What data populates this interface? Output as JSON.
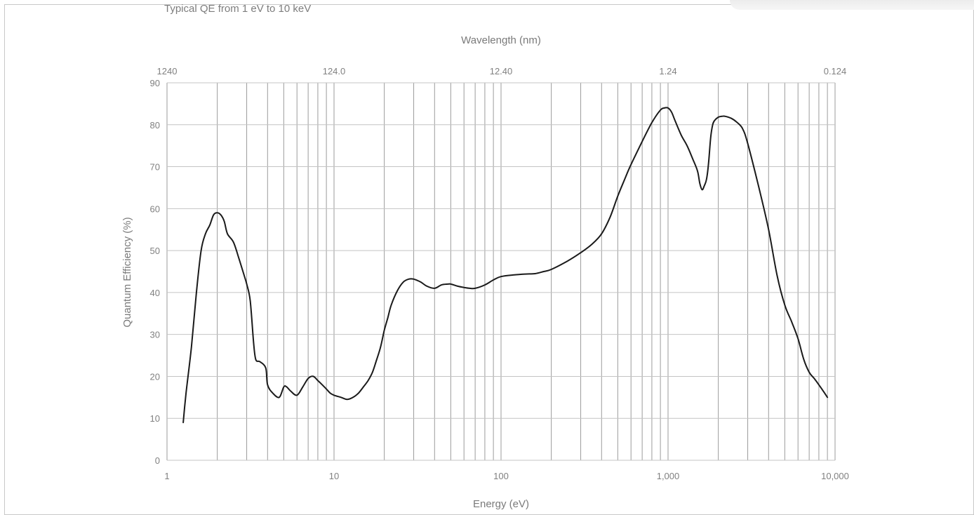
{
  "chart_data": {
    "type": "line",
    "title": "Typical QE from 1 eV to 10 keV",
    "xlabel": "Energy (eV)",
    "ylabel": "Quantum Efficiency (%)",
    "x2label": "Wavelength (nm)",
    "xscale": "log",
    "xlim": [
      1,
      10000
    ],
    "ylim": [
      0,
      90
    ],
    "grid": true,
    "x_ticks": [
      {
        "value": 1,
        "label": "1"
      },
      {
        "value": 10,
        "label": "10"
      },
      {
        "value": 100,
        "label": "100"
      },
      {
        "value": 1000,
        "label": "1,000"
      },
      {
        "value": 10000,
        "label": "10,000"
      }
    ],
    "x2_ticks": [
      {
        "value": 1,
        "label": "1240"
      },
      {
        "value": 10,
        "label": "124.0"
      },
      {
        "value": 100,
        "label": "12.40"
      },
      {
        "value": 1000,
        "label": "1.24"
      },
      {
        "value": 10000,
        "label": "0.124"
      }
    ],
    "y_ticks": [
      0,
      10,
      20,
      30,
      40,
      50,
      60,
      70,
      80,
      90
    ],
    "series": [
      {
        "color": "#1a1a1a",
        "x": [
          1.25,
          1.3,
          1.4,
          1.5,
          1.6,
          1.7,
          1.8,
          1.9,
          2.0,
          2.1,
          2.2,
          2.3,
          2.5,
          2.7,
          2.9,
          3.0,
          3.15,
          3.3,
          3.4,
          3.6,
          3.9,
          4.0,
          4.3,
          4.7,
          5.0,
          5.2,
          5.5,
          6.0,
          6.5,
          7.0,
          7.5,
          8.0,
          8.5,
          9.0,
          9.5,
          10,
          11,
          12,
          13,
          14,
          15,
          16,
          17,
          18,
          19,
          20,
          21,
          22,
          24,
          26,
          28,
          30,
          33,
          36,
          40,
          44,
          48,
          50,
          55,
          60,
          65,
          70,
          80,
          90,
          100,
          120,
          140,
          160,
          180,
          200,
          250,
          300,
          350,
          400,
          450,
          500,
          550,
          600,
          700,
          800,
          900,
          950,
          1000,
          1050,
          1100,
          1200,
          1300,
          1400,
          1500,
          1550,
          1600,
          1650,
          1700,
          1750,
          1800,
          1850,
          1900,
          2000,
          2100,
          2200,
          2400,
          2600,
          2800,
          3000,
          3500,
          4000,
          4500,
          5000,
          5500,
          6000,
          6500,
          7000,
          7500,
          8000,
          8500,
          9000
        ],
        "values": [
          9,
          16,
          27,
          40,
          50,
          54,
          56,
          58.5,
          59,
          58.5,
          57,
          54,
          52,
          48,
          44,
          42,
          38,
          28,
          24,
          23.5,
          22,
          18,
          16,
          15,
          17.5,
          17.5,
          16.5,
          15.5,
          17.5,
          19.5,
          20,
          19,
          18,
          17,
          16,
          15.5,
          15,
          14.5,
          15,
          16,
          17.5,
          19,
          21,
          24,
          27,
          31,
          34,
          37,
          40.5,
          42.5,
          43.2,
          43.2,
          42.5,
          41.5,
          41,
          41.8,
          42,
          42,
          41.5,
          41.2,
          41,
          41,
          41.8,
          43,
          43.8,
          44.2,
          44.4,
          44.5,
          45,
          45.5,
          47.5,
          49.5,
          51.5,
          54,
          58,
          63,
          67,
          70.5,
          76,
          80.5,
          83.5,
          84,
          84,
          83,
          81,
          77.5,
          75,
          72,
          69,
          66,
          64.5,
          65.5,
          67,
          71,
          77,
          80,
          81,
          81.8,
          82,
          82,
          81.5,
          80.5,
          79,
          75.5,
          65,
          55,
          44,
          37,
          33,
          29,
          24,
          21,
          19.5,
          18,
          16.5,
          15
        ]
      }
    ]
  }
}
